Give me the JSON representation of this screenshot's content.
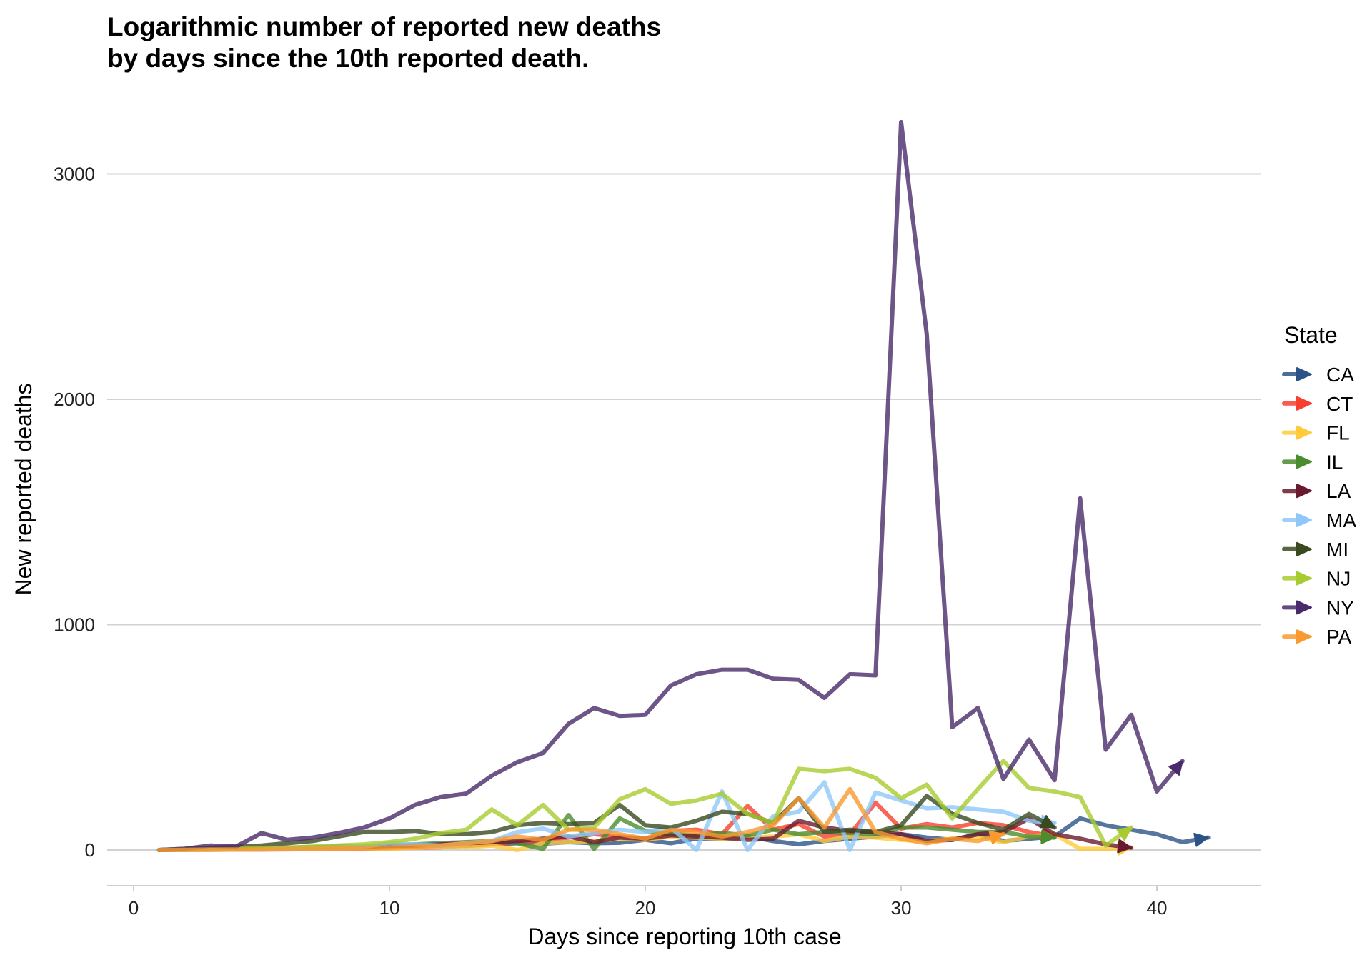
{
  "chart_data": {
    "type": "line",
    "title_lines": [
      "Logarithmic number of reported new deaths",
      "by days since the 10th reported death."
    ],
    "xlabel": "Days since reporting 10th case",
    "ylabel": "New reported deaths",
    "xlim": [
      -1,
      44
    ],
    "ylim": [
      -160,
      3300
    ],
    "x_ticks": [
      0,
      10,
      20,
      30,
      40
    ],
    "y_ticks": [
      0,
      1000,
      2000,
      3000
    ],
    "grid": "horizontal major only",
    "legend_title": "State",
    "legend_position": "right",
    "series": [
      {
        "name": "CA",
        "color": "#2c5387",
        "x": [
          1,
          2,
          3,
          4,
          5,
          6,
          7,
          8,
          9,
          10,
          11,
          12,
          13,
          14,
          15,
          16,
          17,
          18,
          19,
          20,
          21,
          22,
          23,
          24,
          25,
          26,
          27,
          28,
          29,
          30,
          31,
          32,
          33,
          34,
          35,
          36,
          37,
          38,
          39,
          40,
          41,
          42
        ],
        "y": [
          0,
          2,
          3,
          4,
          5,
          6,
          8,
          10,
          8,
          12,
          15,
          20,
          18,
          25,
          30,
          28,
          35,
          30,
          32,
          45,
          30,
          50,
          48,
          60,
          40,
          25,
          40,
          50,
          60,
          70,
          55,
          45,
          70,
          40,
          50,
          60,
          140,
          110,
          90,
          70,
          35,
          55
        ]
      },
      {
        "name": "CT",
        "color": "#f8402e",
        "x": [
          1,
          2,
          3,
          4,
          5,
          6,
          7,
          8,
          9,
          10,
          11,
          12,
          13,
          14,
          15,
          16,
          17,
          18,
          19,
          20,
          21,
          22,
          23,
          24,
          25,
          26,
          27,
          28,
          29,
          30,
          31,
          32,
          33,
          34,
          35,
          36
        ],
        "y": [
          0,
          1,
          1,
          2,
          2,
          3,
          4,
          5,
          6,
          8,
          10,
          12,
          20,
          25,
          35,
          45,
          55,
          70,
          60,
          50,
          85,
          90,
          70,
          195,
          90,
          115,
          60,
          70,
          210,
          95,
          115,
          100,
          120,
          110,
          80,
          60
        ]
      },
      {
        "name": "FL",
        "color": "#fecb3a",
        "x": [
          1,
          2,
          3,
          4,
          5,
          6,
          7,
          8,
          9,
          10,
          11,
          12,
          13,
          14,
          15,
          16,
          17,
          18,
          19,
          20,
          21,
          22,
          23,
          24,
          25,
          26,
          27,
          28,
          29,
          30,
          31,
          32,
          33,
          34,
          35,
          36,
          37,
          38,
          39
        ],
        "y": [
          0,
          1,
          2,
          3,
          4,
          5,
          6,
          8,
          7,
          6,
          10,
          15,
          12,
          20,
          0,
          30,
          35,
          40,
          50,
          45,
          60,
          55,
          50,
          55,
          60,
          70,
          40,
          60,
          55,
          45,
          40,
          50,
          55,
          35,
          60,
          70,
          5,
          5,
          10
        ]
      },
      {
        "name": "IL",
        "color": "#4a8c2e",
        "x": [
          1,
          2,
          3,
          4,
          5,
          6,
          7,
          8,
          9,
          10,
          11,
          12,
          13,
          14,
          15,
          16,
          17,
          18,
          19,
          20,
          21,
          22,
          23,
          24,
          25,
          26,
          27,
          28,
          29,
          30,
          31,
          32,
          33,
          34,
          35,
          36
        ],
        "y": [
          0,
          2,
          3,
          5,
          6,
          8,
          10,
          12,
          15,
          20,
          25,
          30,
          35,
          40,
          30,
          5,
          155,
          5,
          140,
          85,
          70,
          65,
          75,
          65,
          90,
          70,
          80,
          75,
          70,
          100,
          100,
          90,
          80,
          80,
          60,
          55
        ]
      },
      {
        "name": "LA",
        "color": "#6a1a2e",
        "x": [
          1,
          2,
          3,
          4,
          5,
          6,
          7,
          8,
          9,
          10,
          11,
          12,
          13,
          14,
          15,
          16,
          17,
          18,
          19,
          20,
          21,
          22,
          23,
          24,
          25,
          26,
          27,
          28,
          29,
          30,
          31,
          32,
          33,
          34,
          35,
          36,
          37,
          38,
          39
        ],
        "y": [
          0,
          3,
          5,
          6,
          8,
          10,
          12,
          15,
          14,
          18,
          20,
          25,
          30,
          35,
          40,
          50,
          60,
          35,
          55,
          50,
          65,
          60,
          55,
          45,
          50,
          130,
          100,
          85,
          80,
          70,
          40,
          45,
          70,
          80,
          140,
          70,
          50,
          25,
          10
        ]
      },
      {
        "name": "MA",
        "color": "#8fc8f8",
        "x": [
          1,
          2,
          3,
          4,
          5,
          6,
          7,
          8,
          9,
          10,
          11,
          12,
          13,
          14,
          15,
          16,
          17,
          18,
          19,
          20,
          21,
          22,
          23,
          24,
          25,
          26,
          27,
          28,
          29,
          30,
          31,
          32,
          33,
          34,
          35,
          36
        ],
        "y": [
          0,
          1,
          2,
          3,
          5,
          8,
          10,
          12,
          15,
          30,
          25,
          20,
          30,
          40,
          80,
          95,
          60,
          75,
          90,
          80,
          100,
          0,
          260,
          0,
          150,
          170,
          300,
          0,
          255,
          220,
          185,
          190,
          180,
          170,
          130,
          120
        ]
      },
      {
        "name": "MI",
        "color": "#3a4a20",
        "x": [
          1,
          2,
          3,
          4,
          5,
          6,
          7,
          8,
          9,
          10,
          11,
          12,
          13,
          14,
          15,
          16,
          17,
          18,
          19,
          20,
          21,
          22,
          23,
          24,
          25,
          26,
          27,
          28,
          29,
          30,
          31,
          32,
          33,
          34,
          35,
          36
        ],
        "y": [
          0,
          5,
          10,
          15,
          20,
          30,
          40,
          60,
          80,
          80,
          85,
          70,
          70,
          80,
          110,
          120,
          115,
          120,
          200,
          110,
          100,
          130,
          170,
          160,
          120,
          230,
          80,
          90,
          80,
          110,
          240,
          160,
          120,
          90,
          160,
          100
        ]
      },
      {
        "name": "NJ",
        "color": "#a8cc30",
        "x": [
          1,
          2,
          3,
          4,
          5,
          6,
          7,
          8,
          9,
          10,
          11,
          12,
          13,
          14,
          15,
          16,
          17,
          18,
          19,
          20,
          21,
          22,
          23,
          24,
          25,
          26,
          27,
          28,
          29,
          30,
          31,
          32,
          33,
          34,
          35,
          36,
          37,
          38,
          39
        ],
        "y": [
          0,
          2,
          3,
          5,
          8,
          10,
          15,
          20,
          25,
          35,
          50,
          75,
          90,
          180,
          110,
          200,
          90,
          100,
          225,
          270,
          205,
          220,
          250,
          160,
          120,
          360,
          350,
          360,
          320,
          230,
          290,
          140,
          270,
          395,
          275,
          260,
          235,
          20,
          100
        ]
      },
      {
        "name": "NY",
        "color": "#4a2a6a",
        "x": [
          1,
          2,
          3,
          4,
          5,
          6,
          7,
          8,
          9,
          10,
          11,
          12,
          13,
          14,
          15,
          16,
          17,
          18,
          19,
          20,
          21,
          22,
          23,
          24,
          25,
          26,
          27,
          28,
          29,
          30,
          31,
          32,
          33,
          34,
          35,
          36,
          37,
          38,
          39,
          40,
          41
        ],
        "y": [
          0,
          5,
          20,
          15,
          75,
          45,
          55,
          75,
          100,
          140,
          200,
          235,
          250,
          330,
          390,
          430,
          560,
          630,
          595,
          600,
          730,
          780,
          800,
          800,
          760,
          755,
          675,
          780,
          775,
          3230,
          2290,
          545,
          630,
          315,
          490,
          310,
          1560,
          445,
          600,
          260,
          395
        ]
      },
      {
        "name": "PA",
        "color": "#f99a30",
        "x": [
          1,
          2,
          3,
          4,
          5,
          6,
          7,
          8,
          9,
          10,
          11,
          12,
          13,
          14,
          15,
          16,
          17,
          18,
          19,
          20,
          21,
          22,
          23,
          24,
          25,
          26,
          27,
          28,
          29,
          30,
          31,
          32,
          33,
          34
        ],
        "y": [
          0,
          1,
          2,
          2,
          3,
          4,
          5,
          6,
          8,
          10,
          15,
          20,
          30,
          40,
          60,
          45,
          90,
          90,
          70,
          50,
          90,
          80,
          60,
          80,
          110,
          230,
          100,
          270,
          80,
          50,
          30,
          50,
          40,
          70
        ]
      }
    ]
  }
}
